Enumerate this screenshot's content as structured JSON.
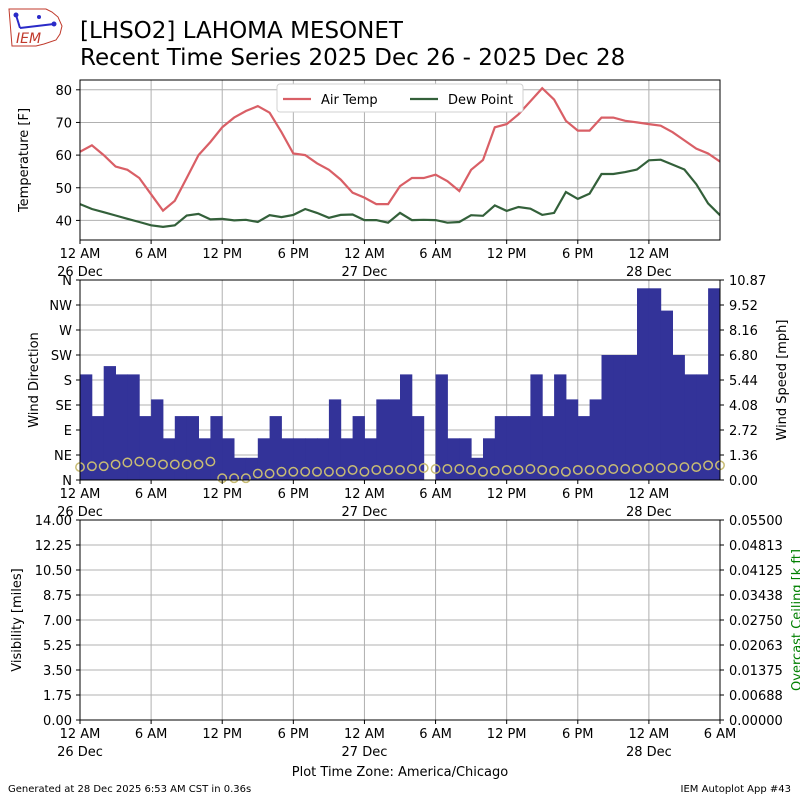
{
  "header": {
    "title_line1": "[LHSO2] LAHOMA MESONET",
    "title_line2": "Recent Time Series 2025 Dec 26 - 2025 Dec 28",
    "logo_text": "IEM"
  },
  "footer": {
    "generated": "Generated at 28 Dec 2025 6:53 AM CST in 0.36s",
    "app": "IEM Autoplot App #43",
    "timezone_label": "Plot Time Zone: America/Chicago"
  },
  "colors": {
    "air_temp": "#d95f66",
    "dew_point": "#33603a",
    "wind_bar": "#333399",
    "wind_speed": "#c8bc74",
    "ceiling_label": "#008000",
    "grid": "#b0b0b0"
  },
  "chart_data": [
    {
      "type": "line",
      "ylabel": "Temperature [F]",
      "ylim": [
        34,
        83
      ],
      "yticks": [
        40,
        50,
        60,
        70,
        80
      ],
      "xlim_hours": [
        0,
        54
      ],
      "xticks": [
        {
          "h": 0,
          "l1": "12 AM",
          "l2": "26 Dec"
        },
        {
          "h": 6,
          "l1": "6 AM",
          "l2": ""
        },
        {
          "h": 12,
          "l1": "12 PM",
          "l2": ""
        },
        {
          "h": 18,
          "l1": "6 PM",
          "l2": ""
        },
        {
          "h": 24,
          "l1": "12 AM",
          "l2": "27 Dec"
        },
        {
          "h": 30,
          "l1": "6 AM",
          "l2": ""
        },
        {
          "h": 36,
          "l1": "12 PM",
          "l2": ""
        },
        {
          "h": 42,
          "l1": "6 PM",
          "l2": ""
        },
        {
          "h": 48,
          "l1": "12 AM",
          "l2": "28 Dec"
        }
      ],
      "grid": true,
      "legend_placement": "top-center",
      "series": [
        {
          "name": "Air Temp",
          "color_key": "air_temp",
          "x": [
            0,
            1,
            2,
            3,
            4,
            5,
            6,
            7,
            8,
            9,
            10,
            11,
            12,
            13,
            14,
            15,
            16,
            17,
            18,
            19,
            20,
            21,
            22,
            23,
            24,
            25,
            26,
            27,
            28,
            29,
            30,
            31,
            32,
            33,
            34,
            35,
            36,
            37,
            38,
            39,
            40,
            41,
            42,
            43,
            44,
            45,
            46,
            47,
            48,
            49,
            50,
            51,
            52,
            53,
            54
          ],
          "values": [
            61,
            63,
            60,
            56.5,
            55.5,
            53,
            48,
            43,
            46,
            53,
            60,
            64,
            68.5,
            71.5,
            73.5,
            75,
            73,
            67,
            60.5,
            60,
            57.5,
            55.5,
            52.5,
            48.5,
            47,
            45,
            45,
            50.5,
            53,
            53,
            54,
            52,
            49,
            55.5,
            58.5,
            68.5,
            69.5,
            72.5,
            76.5,
            80.5,
            77,
            70.5,
            67.5,
            67.5,
            71.5,
            71.5,
            70.5,
            70,
            69.5,
            69,
            67,
            64.5,
            62,
            60.5,
            58
          ]
        },
        {
          "name": "Dew Point",
          "color_key": "dew_point",
          "x": [
            0,
            1,
            2,
            3,
            4,
            5,
            6,
            7,
            8,
            9,
            10,
            11,
            12,
            13,
            14,
            15,
            16,
            17,
            18,
            19,
            20,
            21,
            22,
            23,
            24,
            25,
            26,
            27,
            28,
            29,
            30,
            31,
            32,
            33,
            34,
            35,
            36,
            37,
            38,
            39,
            40,
            41,
            42,
            43,
            44,
            45,
            46,
            47,
            48,
            49,
            50,
            51,
            52,
            53,
            54
          ],
          "values": [
            45,
            43.5,
            42.5,
            41.5,
            40.5,
            39.5,
            38.5,
            38,
            38.5,
            41.5,
            42,
            40.3,
            40.5,
            40,
            40.2,
            39.5,
            41.6,
            41,
            41.7,
            43.5,
            42.3,
            40.8,
            41.7,
            41.8,
            40.1,
            40.1,
            39.3,
            42.3,
            40.1,
            40.2,
            40.1,
            39.3,
            39.5,
            41.6,
            41.4,
            44.6,
            42.9,
            44.1,
            43.6,
            41.7,
            42.3,
            48.7,
            46.6,
            48.2,
            54.2,
            54.2,
            54.8,
            55.6,
            58.4,
            58.6,
            57.1,
            55.6,
            51.1,
            45.2,
            41.6
          ]
        }
      ]
    },
    {
      "type": "bar",
      "ylabel": "Wind Direction",
      "y2label": "Wind Speed [mph]",
      "ylim": [
        0,
        360
      ],
      "y_tick_labels": [
        "N",
        "NE",
        "E",
        "SE",
        "S",
        "SW",
        "W",
        "NW",
        "N"
      ],
      "y2lim": [
        0,
        10.87
      ],
      "y2_tick_labels": [
        "0.00",
        "1.36",
        "2.72",
        "4.08",
        "5.44",
        "6.80",
        "8.16",
        "9.52",
        "10.87"
      ],
      "xlim_hours": [
        0,
        54
      ],
      "grid": true,
      "series": [
        {
          "name": "",
          "color_key": "wind_bar",
          "bar_start_hour": 0,
          "bar_width_hours": 1,
          "values": [
            190,
            115,
            205,
            190,
            190,
            115,
            145,
            75,
            115,
            115,
            75,
            115,
            75,
            40,
            40,
            75,
            115,
            75,
            75,
            75,
            75,
            145,
            75,
            115,
            75,
            145,
            145,
            190,
            115,
            0,
            190,
            75,
            75,
            40,
            75,
            115,
            115,
            115,
            190,
            115,
            190,
            145,
            115,
            145,
            225,
            225,
            225,
            345,
            345,
            305,
            225,
            190,
            190,
            345
          ]
        },
        {
          "name": "",
          "color_key": "wind_speed",
          "x": [
            0,
            1,
            2,
            3,
            4,
            5,
            6,
            7,
            8,
            9,
            10,
            11,
            12,
            13,
            14,
            15,
            16,
            17,
            18,
            19,
            20,
            21,
            22,
            23,
            24,
            25,
            26,
            27,
            28,
            29,
            30,
            31,
            32,
            33,
            34,
            35,
            36,
            37,
            38,
            39,
            40,
            41,
            42,
            43,
            44,
            45,
            46,
            47,
            48,
            49,
            50,
            51,
            52,
            53,
            54
          ],
          "values": [
            0.7,
            0.75,
            0.75,
            0.85,
            0.95,
            1.0,
            0.95,
            0.85,
            0.85,
            0.85,
            0.85,
            1.0,
            0.1,
            0.1,
            0.1,
            0.35,
            0.35,
            0.45,
            0.45,
            0.45,
            0.45,
            0.45,
            0.45,
            0.55,
            0.45,
            0.55,
            0.55,
            0.55,
            0.6,
            0.65,
            0.6,
            0.6,
            0.6,
            0.55,
            0.45,
            0.5,
            0.55,
            0.55,
            0.6,
            0.55,
            0.5,
            0.45,
            0.55,
            0.55,
            0.55,
            0.6,
            0.6,
            0.6,
            0.65,
            0.65,
            0.65,
            0.7,
            0.7,
            0.8,
            0.8
          ]
        }
      ]
    },
    {
      "type": "line",
      "ylabel": "Visibility [miles]",
      "y2label": "Overcast Ceiling [k ft]",
      "ylim": [
        0,
        14
      ],
      "y_tick_labels": [
        "0.00",
        "1.75",
        "3.50",
        "5.25",
        "7.00",
        "8.75",
        "10.50",
        "12.25",
        "14.00"
      ],
      "y2lim": [
        0,
        0.055
      ],
      "y2_tick_labels": [
        "0.00000",
        "0.00688",
        "0.01375",
        "0.02063",
        "0.02750",
        "0.03438",
        "0.04125",
        "0.04813",
        "0.05500"
      ],
      "xlim_hours": [
        0,
        54
      ],
      "xticks": [
        {
          "h": 0,
          "l1": "12 AM",
          "l2": "26 Dec"
        },
        {
          "h": 6,
          "l1": "6 AM",
          "l2": ""
        },
        {
          "h": 12,
          "l1": "12 PM",
          "l2": ""
        },
        {
          "h": 18,
          "l1": "6 PM",
          "l2": ""
        },
        {
          "h": 24,
          "l1": "12 AM",
          "l2": "27 Dec"
        },
        {
          "h": 30,
          "l1": "6 AM",
          "l2": ""
        },
        {
          "h": 36,
          "l1": "12 PM",
          "l2": ""
        },
        {
          "h": 42,
          "l1": "6 PM",
          "l2": ""
        },
        {
          "h": 48,
          "l1": "12 AM",
          "l2": "28 Dec"
        },
        {
          "h": 54,
          "l1": "6 AM",
          "l2": ""
        }
      ],
      "grid": true,
      "series": []
    }
  ]
}
